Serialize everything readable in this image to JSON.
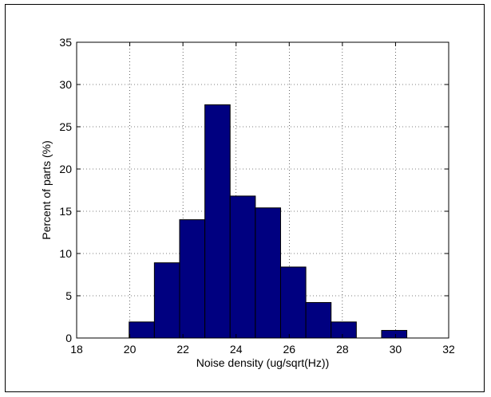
{
  "chart_data": {
    "type": "bar",
    "title": "",
    "xlabel": "Noise density (ug/sqrt(Hz))",
    "ylabel": "Percent of parts (%)",
    "xlim": [
      18,
      32
    ],
    "ylim": [
      0,
      35
    ],
    "xticks": [
      "18",
      "20",
      "22",
      "24",
      "26",
      "28",
      "30",
      "32"
    ],
    "yticks": [
      "0",
      "5",
      "10",
      "15",
      "20",
      "25",
      "30",
      "35"
    ],
    "grid": true,
    "bin_width": 0.95,
    "bins": [
      {
        "center": 20.45,
        "value": 1.9
      },
      {
        "center": 21.4,
        "value": 8.9
      },
      {
        "center": 22.35,
        "value": 14.0
      },
      {
        "center": 23.3,
        "value": 27.6
      },
      {
        "center": 24.25,
        "value": 16.8
      },
      {
        "center": 25.2,
        "value": 15.4
      },
      {
        "center": 26.15,
        "value": 8.4
      },
      {
        "center": 27.1,
        "value": 4.2
      },
      {
        "center": 28.05,
        "value": 1.9
      },
      {
        "center": 29.0,
        "value": 0
      },
      {
        "center": 29.95,
        "value": 0.9
      }
    ],
    "colors": {
      "bar_fill": "#000080",
      "bar_edge": "#000000",
      "grid": "#000000"
    }
  }
}
